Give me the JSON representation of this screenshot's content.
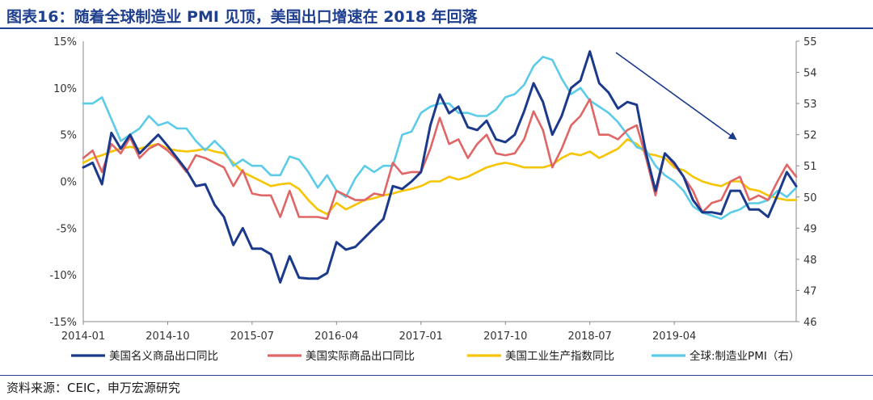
{
  "title": "图表16：随着全球制造业 PMI 见顶，美国出口增速在 2018 年回落",
  "source": "资料来源：CEIC，申万宏源研究",
  "colors": {
    "title": "#1f3f8f",
    "nominal_exports": "#1b3a8c",
    "real_exports": "#e06666",
    "industrial_production": "#f7c400",
    "global_pmi": "#5ccbe8",
    "arrow": "#1b3a8c"
  },
  "chart_data": {
    "type": "line",
    "x_tick_labels": [
      "2014-01",
      "2014-10",
      "2015-07",
      "2016-04",
      "2017-01",
      "2017-10",
      "2018-07",
      "2019-04"
    ],
    "x_tick_index": [
      0,
      9,
      18,
      27,
      36,
      45,
      54,
      63
    ],
    "y_left": {
      "min": -15,
      "max": 15,
      "step": 5,
      "labels": [
        "15%",
        "10%",
        "5%",
        "0%",
        "-5%",
        "-10%",
        "-15%"
      ]
    },
    "y_right": {
      "min": 46,
      "max": 55,
      "step": 1,
      "labels": [
        "55",
        "54",
        "53",
        "52",
        "51",
        "50",
        "49",
        "48",
        "47",
        "46"
      ]
    },
    "grid": false,
    "legend_position": "bottom",
    "annotation": "downward-arrow",
    "series": [
      {
        "name": "美国名义商品出口同比",
        "axis": "left",
        "color": "#1b3a8c",
        "values": [
          1.5,
          2.0,
          -0.3,
          5.2,
          3.5,
          5.0,
          3.0,
          4.0,
          5.0,
          3.8,
          2.5,
          1.2,
          -0.5,
          -0.3,
          -2.5,
          -3.8,
          -6.8,
          -5.0,
          -7.2,
          -7.2,
          -7.8,
          -10.8,
          -8.0,
          -10.3,
          -10.4,
          -10.4,
          -9.8,
          -6.5,
          -7.3,
          -7.0,
          -6.0,
          -5.0,
          -4.0,
          -0.5,
          -0.8,
          0.0,
          1.0,
          6.0,
          9.3,
          7.3,
          8.0,
          5.8,
          5.5,
          6.5,
          4.5,
          4.2,
          5.0,
          7.5,
          10.5,
          8.5,
          5.0,
          7.0,
          10.0,
          10.8,
          13.9,
          10.5,
          9.5,
          7.8,
          8.5,
          8.2,
          3.0,
          -1.0,
          3.0,
          2.0,
          0.5,
          -2.0,
          -3.3,
          -3.3,
          -3.5,
          -1.0,
          -1.0,
          -3.0,
          -3.0,
          -3.8,
          -1.5,
          1.0,
          -0.5
        ]
      },
      {
        "name": "美国实际商品出口同比",
        "axis": "left",
        "color": "#e06666",
        "values": [
          2.5,
          3.3,
          1.0,
          4.0,
          3.0,
          4.7,
          2.5,
          3.5,
          4.0,
          3.3,
          2.3,
          1.0,
          2.8,
          2.5,
          2.0,
          1.5,
          -0.5,
          1.2,
          -1.3,
          -1.5,
          -1.5,
          -3.8,
          -1.0,
          -3.8,
          -3.8,
          -3.8,
          -4.0,
          -1.0,
          -1.5,
          -2.0,
          -2.0,
          -1.3,
          -1.5,
          2.0,
          0.8,
          1.0,
          1.0,
          3.5,
          6.8,
          4.0,
          4.5,
          2.5,
          4.0,
          5.0,
          3.0,
          2.8,
          3.0,
          4.5,
          7.5,
          5.5,
          1.5,
          3.5,
          6.0,
          7.0,
          8.8,
          5.0,
          5.0,
          4.5,
          5.5,
          6.0,
          2.5,
          -1.5,
          3.0,
          1.8,
          0.5,
          -1.0,
          -3.3,
          -2.3,
          -2.0,
          0.0,
          0.5,
          -2.0,
          -1.5,
          -2.0,
          0.0,
          1.8,
          0.5
        ]
      },
      {
        "name": "美国工业生产指数同比",
        "axis": "left",
        "color": "#f7c400",
        "values": [
          2.0,
          2.5,
          2.8,
          3.2,
          3.5,
          3.7,
          3.5,
          3.8,
          4.0,
          3.5,
          3.3,
          3.2,
          3.3,
          3.5,
          3.2,
          3.0,
          2.0,
          1.0,
          0.5,
          0.0,
          -0.5,
          -0.3,
          -0.2,
          -0.8,
          -2.0,
          -3.0,
          -3.5,
          -2.3,
          -3.0,
          -2.5,
          -2.0,
          -1.8,
          -1.5,
          -1.3,
          -1.0,
          -0.8,
          -0.5,
          0.0,
          0.0,
          0.5,
          0.2,
          0.5,
          1.0,
          1.5,
          1.8,
          2.0,
          1.8,
          1.5,
          1.5,
          1.5,
          1.8,
          2.5,
          3.0,
          2.8,
          3.2,
          2.5,
          3.0,
          3.5,
          4.5,
          4.0,
          3.0,
          2.8,
          2.5,
          1.5,
          1.2,
          0.5,
          0.0,
          -0.3,
          -0.5,
          0.0,
          0.0,
          -0.8,
          -1.0,
          -1.5,
          -1.8,
          -2.0,
          -2.0
        ]
      },
      {
        "name": "全球:制造业PMI（右）",
        "axis": "right",
        "color": "#5ccbe8",
        "values": [
          53.0,
          53.0,
          53.2,
          52.5,
          51.8,
          52.0,
          52.2,
          52.6,
          52.3,
          52.4,
          52.2,
          52.2,
          51.8,
          51.5,
          51.8,
          51.5,
          51.0,
          51.2,
          51.0,
          51.0,
          50.7,
          50.7,
          51.3,
          51.2,
          50.8,
          50.3,
          50.7,
          50.2,
          50.0,
          50.6,
          51.0,
          50.8,
          51.0,
          51.0,
          52.0,
          52.1,
          52.7,
          52.9,
          53.0,
          53.0,
          52.7,
          52.7,
          52.6,
          52.6,
          52.8,
          53.2,
          53.3,
          53.6,
          54.2,
          54.5,
          54.4,
          53.8,
          53.3,
          53.5,
          53.1,
          52.9,
          52.7,
          52.4,
          52.0,
          51.6,
          51.5,
          51.0,
          50.7,
          50.5,
          50.2,
          49.7,
          49.5,
          49.4,
          49.3,
          49.5,
          49.6,
          49.8,
          49.8,
          49.9,
          50.2,
          50.0,
          50.3
        ]
      }
    ]
  }
}
